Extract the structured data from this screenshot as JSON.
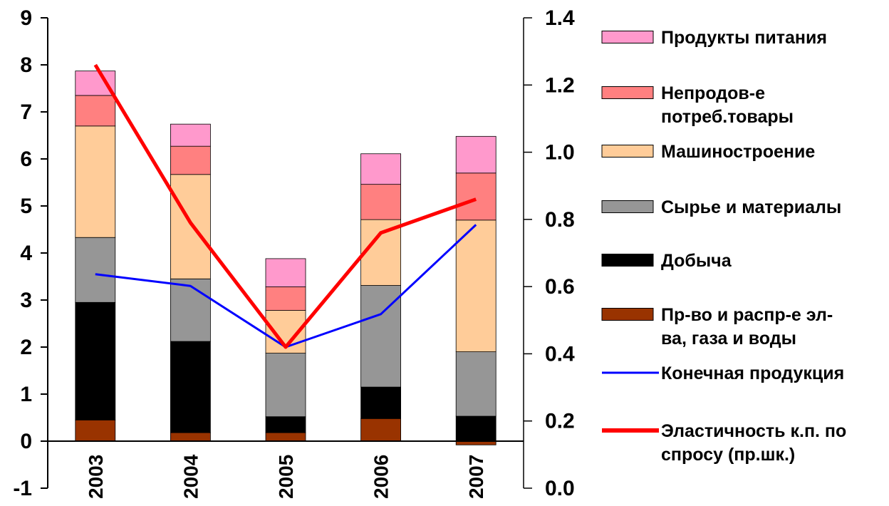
{
  "chart_data": {
    "type": "bar",
    "stacked": true,
    "categories": [
      "2003",
      "2004",
      "2005",
      "2006",
      "2007"
    ],
    "ylim": [
      -1,
      9
    ],
    "yticks": [
      "-1",
      "0",
      "1",
      "2",
      "3",
      "4",
      "5",
      "6",
      "7",
      "8",
      "9"
    ],
    "y2lim": [
      0.0,
      1.4
    ],
    "y2ticks": [
      "0.0",
      "0.2",
      "0.4",
      "0.6",
      "0.8",
      "1.0",
      "1.2",
      "1.4"
    ],
    "legend_position": "right",
    "series": [
      {
        "name": "Пр-во и распр-е эл-ва, газа и воды",
        "color": "#993300",
        "values": [
          0.45,
          0.18,
          0.18,
          0.48,
          -0.08
        ]
      },
      {
        "name": "Добыча",
        "color": "#000000",
        "values": [
          2.5,
          1.94,
          0.34,
          0.67,
          0.53
        ]
      },
      {
        "name": "Сырье и материалы",
        "color": "#969696",
        "values": [
          1.38,
          1.33,
          1.35,
          2.16,
          1.37
        ]
      },
      {
        "name": "Машиностроение",
        "color": "#FFCC99",
        "values": [
          2.37,
          2.22,
          0.91,
          1.4,
          2.8
        ]
      },
      {
        "name": "Непродов-е потреб.товары",
        "color": "#FF8080",
        "values": [
          0.65,
          0.6,
          0.5,
          0.75,
          1.0
        ]
      },
      {
        "name": "Продукты питания",
        "color": "#FF99CC",
        "values": [
          0.52,
          0.47,
          0.6,
          0.65,
          0.78
        ]
      }
    ],
    "lines": [
      {
        "name": "Конечная продукция",
        "color": "#0000FF",
        "axis": "left",
        "values": [
          3.55,
          3.3,
          2.0,
          2.7,
          4.6
        ]
      },
      {
        "name": "Эластичность к.п. по спросу (пр.шк.)",
        "color": "#FF0000",
        "axis": "right",
        "values": [
          1.26,
          0.79,
          0.42,
          0.76,
          0.86
        ]
      }
    ],
    "legend": [
      "Продукты питания",
      "Непродов-е потреб.товары",
      "Машиностроение",
      "Сырье и материалы",
      "Добыча",
      "Пр-во и распр-е эл-ва, газа и воды",
      "Конечная продукция",
      "Эластичность к.п. по спросу (пр.шк.)"
    ]
  }
}
